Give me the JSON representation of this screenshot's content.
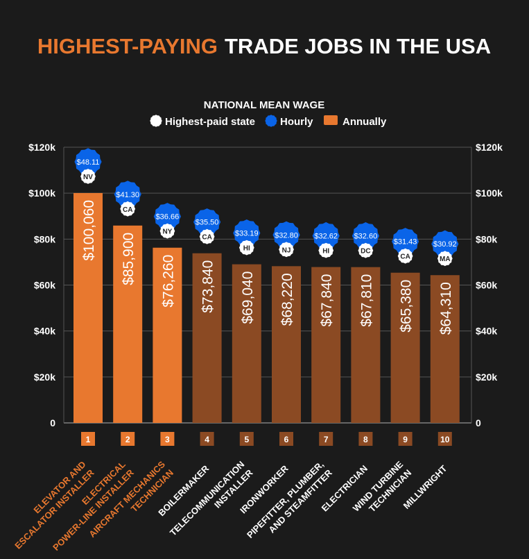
{
  "title": {
    "highlight": "HIGHEST-PAYING",
    "rest": "TRADE JOBS IN THE USA"
  },
  "colors": {
    "background": "#1b1b1b",
    "top_bar": "#e8782f",
    "other_bar": "#8b4a23",
    "hourly_badge": "#0a64e8",
    "state_badge": "#ffffff",
    "grid": "#555555"
  },
  "chart_data": {
    "type": "bar",
    "title": "NATIONAL MEAN WAGE",
    "legend": [
      {
        "label": "Highest-paid state",
        "icon": "white-badge"
      },
      {
        "label": "Hourly",
        "icon": "blue-badge"
      },
      {
        "label": "Annually",
        "icon": "orange-bar"
      }
    ],
    "legend_placement": "top",
    "ylim": [
      0,
      120000
    ],
    "yticks": [
      "0",
      "$20k",
      "$40k",
      "$60k",
      "$80k",
      "$100k",
      "$120k"
    ],
    "grid": true,
    "ranks": [
      "1",
      "2",
      "3",
      "4",
      "5",
      "6",
      "7",
      "8",
      "9",
      "10"
    ],
    "categories": [
      [
        "ELEVATOR AND",
        "ESCALATOR INSTALLER"
      ],
      [
        "ELECTRICAL",
        "POWER-LINE INSTALLER"
      ],
      [
        "AIRCRAFT MECHANICS",
        "TECHNICIAN"
      ],
      [
        "BOILERMAKER"
      ],
      [
        "TELECOMMUNICATION",
        "INSTALLER"
      ],
      [
        "IRONWORKER"
      ],
      [
        "PIPEFITTER, PLUMBER,",
        "AND STEAMFITTER"
      ],
      [
        "ELECTRICIAN"
      ],
      [
        "WIND TURBINE",
        "TECHNICIAN"
      ],
      [
        "MILLWRIGHT"
      ]
    ],
    "highlighted_count": 3,
    "series": [
      {
        "name": "Annually",
        "values": [
          100060,
          85900,
          76260,
          73840,
          69040,
          68220,
          67840,
          67810,
          65380,
          64310
        ],
        "labels": [
          "$100,060",
          "$85,900",
          "$76,260",
          "$73,840",
          "$69,040",
          "$68,220",
          "$67,840",
          "$67,810",
          "$65,380",
          "$64,310"
        ]
      },
      {
        "name": "Hourly",
        "labels": [
          "$48.11",
          "$41.30",
          "$36.66",
          "$35.50",
          "$33.19",
          "$32.80",
          "$32.62",
          "$32.60",
          "$31.43",
          "$30.92"
        ]
      },
      {
        "name": "Highest-paid state",
        "labels": [
          "NV",
          "CA",
          "NY",
          "CA",
          "HI",
          "NJ",
          "HI",
          "DC",
          "CA",
          "MA"
        ]
      }
    ]
  }
}
